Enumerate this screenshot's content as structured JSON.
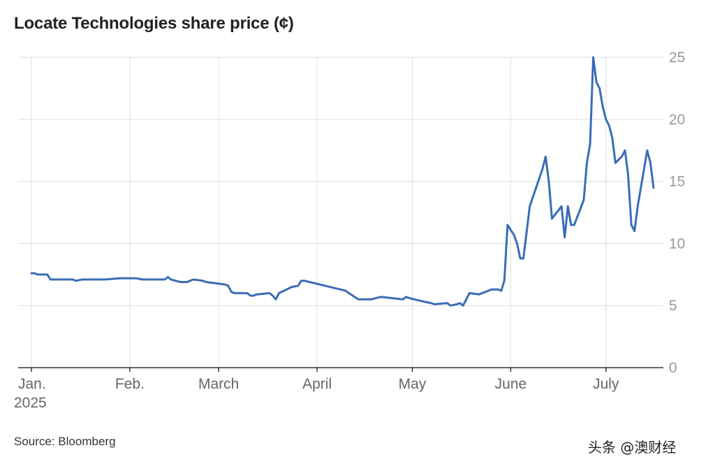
{
  "chart_data": {
    "type": "line",
    "title": "Locate Technologies share price (¢)",
    "source": "Source: Bloomberg",
    "watermark": "头条 @澳财经",
    "ylim": [
      0,
      25
    ],
    "yticks": [
      0,
      5,
      10,
      15,
      20,
      25
    ],
    "y_axis_position": "right",
    "grid": true,
    "xlim": [
      "2025-01-01",
      "2025-07-16"
    ],
    "xticks": [
      {
        "date": "2025-01-01",
        "label": "Jan.",
        "sublabel": "2025"
      },
      {
        "date": "2025-02-01",
        "label": "Feb.",
        "sublabel": ""
      },
      {
        "date": "2025-03-01",
        "label": "March",
        "sublabel": ""
      },
      {
        "date": "2025-04-01",
        "label": "April",
        "sublabel": ""
      },
      {
        "date": "2025-05-01",
        "label": "May",
        "sublabel": ""
      },
      {
        "date": "2025-06-01",
        "label": "June",
        "sublabel": ""
      },
      {
        "date": "2025-07-01",
        "label": "July",
        "sublabel": ""
      }
    ],
    "series": [
      {
        "color": "#3a6db5",
        "points": [
          [
            "2025-01-01",
            7.6
          ],
          [
            "2025-01-02",
            7.6
          ],
          [
            "2025-01-03",
            7.5
          ],
          [
            "2025-01-06",
            7.5
          ],
          [
            "2025-01-07",
            7.1
          ],
          [
            "2025-01-14",
            7.1
          ],
          [
            "2025-01-15",
            7.0
          ],
          [
            "2025-01-17",
            7.1
          ],
          [
            "2025-01-24",
            7.1
          ],
          [
            "2025-01-29",
            7.2
          ],
          [
            "2025-02-03",
            7.2
          ],
          [
            "2025-02-05",
            7.1
          ],
          [
            "2025-02-12",
            7.1
          ],
          [
            "2025-02-13",
            7.3
          ],
          [
            "2025-02-14",
            7.1
          ],
          [
            "2025-02-17",
            6.9
          ],
          [
            "2025-02-19",
            6.9
          ],
          [
            "2025-02-21",
            7.1
          ],
          [
            "2025-02-24",
            7.0
          ],
          [
            "2025-02-25",
            6.9
          ],
          [
            "2025-02-28",
            6.8
          ],
          [
            "2025-03-03",
            6.7
          ],
          [
            "2025-03-04",
            6.6
          ],
          [
            "2025-03-05",
            6.1
          ],
          [
            "2025-03-06",
            6.0
          ],
          [
            "2025-03-10",
            6.0
          ],
          [
            "2025-03-11",
            5.8
          ],
          [
            "2025-03-12",
            5.8
          ],
          [
            "2025-03-13",
            5.9
          ],
          [
            "2025-03-17",
            6.0
          ],
          [
            "2025-03-18",
            5.8
          ],
          [
            "2025-03-19",
            5.5
          ],
          [
            "2025-03-20",
            6.0
          ],
          [
            "2025-03-24",
            6.5
          ],
          [
            "2025-03-26",
            6.6
          ],
          [
            "2025-03-27",
            7.0
          ],
          [
            "2025-03-28",
            7.0
          ],
          [
            "2025-04-10",
            6.2
          ],
          [
            "2025-04-11",
            6.0
          ],
          [
            "2025-04-14",
            5.5
          ],
          [
            "2025-04-16",
            5.5
          ],
          [
            "2025-04-18",
            5.5
          ],
          [
            "2025-04-21",
            5.7
          ],
          [
            "2025-04-28",
            5.5
          ],
          [
            "2025-04-29",
            5.7
          ],
          [
            "2025-04-30",
            5.6
          ],
          [
            "2025-05-05",
            5.3
          ],
          [
            "2025-05-07",
            5.2
          ],
          [
            "2025-05-08",
            5.1
          ],
          [
            "2025-05-12",
            5.2
          ],
          [
            "2025-05-13",
            5.0
          ],
          [
            "2025-05-15",
            5.1
          ],
          [
            "2025-05-16",
            5.2
          ],
          [
            "2025-05-17",
            5.0
          ],
          [
            "2025-05-19",
            6.0
          ],
          [
            "2025-05-22",
            5.9
          ],
          [
            "2025-05-26",
            6.3
          ],
          [
            "2025-05-28",
            6.3
          ],
          [
            "2025-05-29",
            6.2
          ],
          [
            "2025-05-30",
            7.0
          ],
          [
            "2025-05-31",
            11.5
          ],
          [
            "2025-06-02",
            10.7
          ],
          [
            "2025-06-03",
            10.0
          ],
          [
            "2025-06-04",
            8.8
          ],
          [
            "2025-06-05",
            8.8
          ],
          [
            "2025-06-07",
            13.0
          ],
          [
            "2025-06-09",
            14.5
          ],
          [
            "2025-06-11",
            16.0
          ],
          [
            "2025-06-12",
            17.0
          ],
          [
            "2025-06-13",
            15.0
          ],
          [
            "2025-06-14",
            12.0
          ],
          [
            "2025-06-17",
            13.0
          ],
          [
            "2025-06-18",
            10.5
          ],
          [
            "2025-06-19",
            13.0
          ],
          [
            "2025-06-20",
            11.5
          ],
          [
            "2025-06-21",
            11.5
          ],
          [
            "2025-06-24",
            13.5
          ],
          [
            "2025-06-25",
            16.5
          ],
          [
            "2025-06-26",
            18.0
          ],
          [
            "2025-06-27",
            25.0
          ],
          [
            "2025-06-28",
            23.0
          ],
          [
            "2025-06-29",
            22.5
          ],
          [
            "2025-06-30",
            21.0
          ],
          [
            "2025-07-01",
            20.0
          ],
          [
            "2025-07-02",
            19.5
          ],
          [
            "2025-07-03",
            18.5
          ],
          [
            "2025-07-04",
            16.5
          ],
          [
            "2025-07-06",
            17.0
          ],
          [
            "2025-07-07",
            17.5
          ],
          [
            "2025-07-08",
            15.5
          ],
          [
            "2025-07-09",
            11.5
          ],
          [
            "2025-07-10",
            11.0
          ],
          [
            "2025-07-11",
            13.0
          ],
          [
            "2025-07-12",
            14.5
          ],
          [
            "2025-07-13",
            16.0
          ],
          [
            "2025-07-14",
            17.5
          ],
          [
            "2025-07-15",
            16.5
          ],
          [
            "2025-07-16",
            14.5
          ]
        ]
      }
    ]
  }
}
